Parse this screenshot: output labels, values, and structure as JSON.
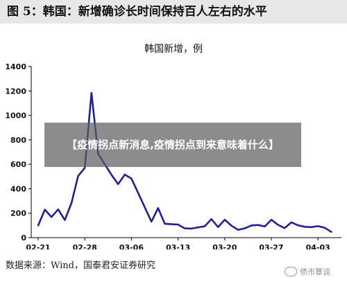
{
  "figure": {
    "title": "图 5：韩国：新增确诊长时间保持百人左右的水平",
    "source": "数据来源：Wind，国泰君安证券研究"
  },
  "watermark": {
    "text": "债市覃谈"
  },
  "overlay": {
    "text": "【疫情拐点新消息,疫情拐点到来意味着什么】"
  },
  "colors": {
    "line": "#1f1f9a",
    "axis": "#000000",
    "background": "#ffffff"
  },
  "chart_data": {
    "type": "line",
    "title": "韩国新增，例",
    "xlabel": "",
    "ylabel": "",
    "ylim": [
      0,
      1400
    ],
    "yticks": [
      0,
      200,
      400,
      600,
      800,
      1000,
      1200,
      1400
    ],
    "grid": false,
    "legend": "none",
    "x_tick_labels": [
      "02-21",
      "02-28",
      "03-06",
      "03-13",
      "03-20",
      "03-27",
      "04-03"
    ],
    "x": [
      "02-21",
      "02-22",
      "02-23",
      "02-24",
      "02-25",
      "02-26",
      "02-27",
      "02-28",
      "02-29",
      "03-01",
      "03-02",
      "03-03",
      "03-04",
      "03-05",
      "03-06",
      "03-07",
      "03-08",
      "03-09",
      "03-10",
      "03-11",
      "03-12",
      "03-13",
      "03-14",
      "03-15",
      "03-16",
      "03-17",
      "03-18",
      "03-19",
      "03-20",
      "03-21",
      "03-22",
      "03-23",
      "03-24",
      "03-25",
      "03-26",
      "03-27",
      "03-28",
      "03-29",
      "03-30",
      "03-31",
      "04-01",
      "04-02",
      "04-03",
      "04-04",
      "04-05"
    ],
    "series": [
      {
        "name": "",
        "values": [
          100,
          229,
          169,
          231,
          144,
          284,
          505,
          571,
          1184,
          686,
          600,
          514,
          438,
          516,
          483,
          367,
          248,
          131,
          242,
          114,
          110,
          107,
          76,
          74,
          84,
          93,
          152,
          87,
          147,
          98,
          64,
          76,
          100,
          104,
          91,
          146,
          105,
          78,
          125,
          101,
          89,
          86,
          94,
          81,
          47
        ]
      }
    ]
  }
}
